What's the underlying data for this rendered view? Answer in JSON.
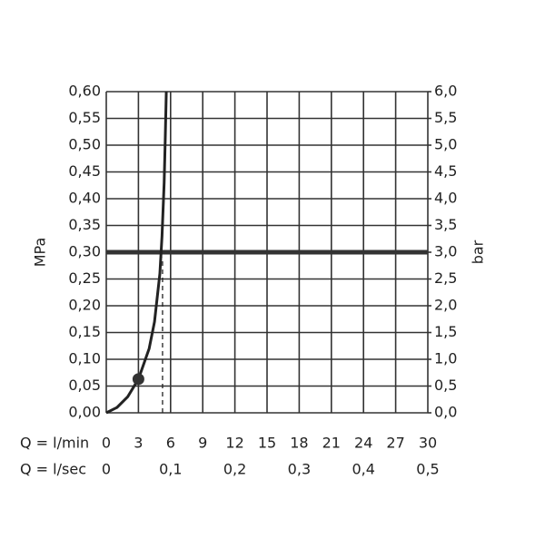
{
  "chart_data": {
    "type": "line",
    "y_label": "MPa",
    "y2_label": "bar",
    "x_label": "Q = l/min",
    "x2_label": "Q = l/sec",
    "xlim": [
      0,
      30
    ],
    "xticks": [
      0,
      3,
      6,
      9,
      12,
      15,
      18,
      21,
      24,
      27,
      30
    ],
    "x2lim": [
      0,
      0.5
    ],
    "x2ticks": [
      0,
      {
        "value": 0.1,
        "label": "0,1"
      },
      {
        "value": 0.2,
        "label": "0,2"
      },
      {
        "value": 0.3,
        "label": "0,3"
      },
      {
        "value": 0.4,
        "label": "0,4"
      },
      {
        "value": 0.5,
        "label": "0,5"
      }
    ],
    "ylim": [
      0,
      0.6
    ],
    "yticks": [
      {
        "value": 0,
        "label": "0,00"
      },
      {
        "value": 0.05,
        "label": "0,05"
      },
      {
        "value": 0.1,
        "label": "0,10"
      },
      {
        "value": 0.15,
        "label": "0,15"
      },
      {
        "value": 0.2,
        "label": "0,20"
      },
      {
        "value": 0.25,
        "label": "0,25"
      },
      {
        "value": 0.3,
        "label": "0,30"
      },
      {
        "value": 0.35,
        "label": "0,35"
      },
      {
        "value": 0.4,
        "label": "0,40"
      },
      {
        "value": 0.45,
        "label": "0,45"
      },
      {
        "value": 0.5,
        "label": "0,50"
      },
      {
        "value": 0.55,
        "label": "0,55"
      },
      {
        "value": 0.6,
        "label": "0,60"
      }
    ],
    "y2lim": [
      0,
      6
    ],
    "y2ticks": [
      {
        "value": 0,
        "label": "0,0"
      },
      {
        "value": 0.5,
        "label": "0,5"
      },
      {
        "value": 1,
        "label": "1,0"
      },
      {
        "value": 1.5,
        "label": "1,5"
      },
      {
        "value": 2,
        "label": "2,0"
      },
      {
        "value": 2.5,
        "label": "2,5"
      },
      {
        "value": 3,
        "label": "3,0"
      },
      {
        "value": 3.5,
        "label": "3,5"
      },
      {
        "value": 4,
        "label": "4,0"
      },
      {
        "value": 4.5,
        "label": "4,5"
      },
      {
        "value": 5,
        "label": "5,0"
      },
      {
        "value": 5.5,
        "label": "5,5"
      },
      {
        "value": 6,
        "label": "6,0"
      }
    ],
    "grid": true,
    "series": [
      {
        "color": "#222222",
        "x": [
          0,
          1,
          2,
          3,
          4,
          4.5,
          5,
          5.2,
          5.4,
          5.5,
          5.6
        ],
        "values": [
          0,
          0.01,
          0.03,
          0.063,
          0.12,
          0.17,
          0.26,
          0.33,
          0.43,
          0.51,
          0.6
        ]
      },
      {
        "color": "#222222",
        "dashed": true,
        "x": [
          5.25,
          5.25
        ],
        "values": [
          0,
          0.29
        ]
      }
    ],
    "reference_line": {
      "value": 0.3,
      "color": "#333333"
    },
    "marker": {
      "x": 3,
      "y": 0.063,
      "color": "#333333"
    }
  }
}
